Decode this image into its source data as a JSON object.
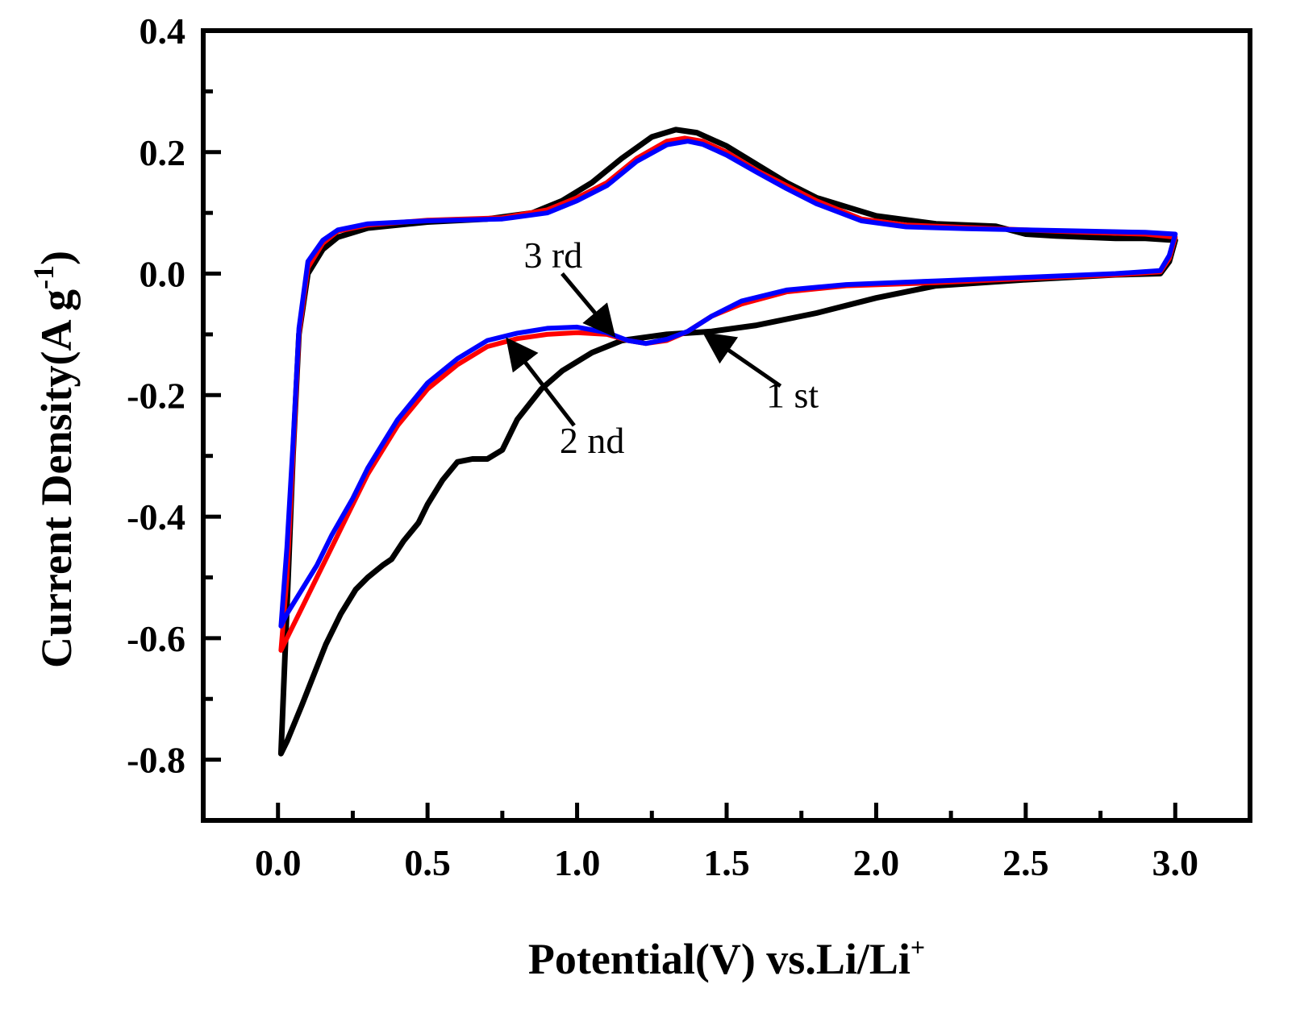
{
  "chart_data": {
    "type": "line",
    "title": "",
    "xlabel_main": "Potential(V) vs.Li/Li",
    "xlabel_sup": "+",
    "ylabel_main": "Current Density(A g",
    "ylabel_sup": "-1",
    "ylabel_close": ")",
    "xlim": [
      -0.25,
      3.25
    ],
    "ylim": [
      -0.9,
      0.4
    ],
    "xticks": [
      0.0,
      0.5,
      1.0,
      1.5,
      2.0,
      2.5,
      3.0
    ],
    "xtick_labels": [
      "0.0",
      "0.5",
      "1.0",
      "1.5",
      "2.0",
      "2.5",
      "3.0"
    ],
    "yticks": [
      -0.8,
      -0.6,
      -0.4,
      -0.2,
      0.0,
      0.2,
      0.4
    ],
    "ytick_labels": [
      "-0.8",
      "-0.6",
      "-0.4",
      "-0.2",
      "0.0",
      "0.2",
      "0.4"
    ],
    "grid": false,
    "series": [
      {
        "name": "1 st",
        "color": "#000000",
        "points": [
          [
            0.01,
            -0.79
          ],
          [
            0.03,
            -0.77
          ],
          [
            0.08,
            -0.71
          ],
          [
            0.12,
            -0.66
          ],
          [
            0.16,
            -0.61
          ],
          [
            0.21,
            -0.56
          ],
          [
            0.26,
            -0.52
          ],
          [
            0.3,
            -0.5
          ],
          [
            0.35,
            -0.48
          ],
          [
            0.38,
            -0.47
          ],
          [
            0.42,
            -0.44
          ],
          [
            0.47,
            -0.41
          ],
          [
            0.5,
            -0.38
          ],
          [
            0.55,
            -0.34
          ],
          [
            0.6,
            -0.31
          ],
          [
            0.65,
            -0.305
          ],
          [
            0.7,
            -0.305
          ],
          [
            0.75,
            -0.29
          ],
          [
            0.8,
            -0.24
          ],
          [
            0.88,
            -0.19
          ],
          [
            0.95,
            -0.16
          ],
          [
            1.05,
            -0.13
          ],
          [
            1.15,
            -0.11
          ],
          [
            1.3,
            -0.1
          ],
          [
            1.45,
            -0.095
          ],
          [
            1.6,
            -0.085
          ],
          [
            1.8,
            -0.065
          ],
          [
            2.0,
            -0.04
          ],
          [
            2.2,
            -0.02
          ],
          [
            2.5,
            -0.01
          ],
          [
            2.8,
            -0.002
          ],
          [
            2.95,
            0.0
          ],
          [
            2.98,
            0.02
          ],
          [
            3.0,
            0.055
          ],
          [
            2.9,
            0.058
          ],
          [
            2.8,
            0.058
          ],
          [
            2.6,
            0.062
          ],
          [
            2.5,
            0.065
          ],
          [
            2.4,
            0.078
          ],
          [
            2.2,
            0.082
          ],
          [
            2.0,
            0.095
          ],
          [
            1.8,
            0.125
          ],
          [
            1.7,
            0.15
          ],
          [
            1.6,
            0.18
          ],
          [
            1.5,
            0.21
          ],
          [
            1.4,
            0.232
          ],
          [
            1.33,
            0.237
          ],
          [
            1.25,
            0.225
          ],
          [
            1.15,
            0.19
          ],
          [
            1.05,
            0.15
          ],
          [
            0.95,
            0.12
          ],
          [
            0.85,
            0.1
          ],
          [
            0.7,
            0.09
          ],
          [
            0.5,
            0.085
          ],
          [
            0.3,
            0.075
          ],
          [
            0.2,
            0.06
          ],
          [
            0.15,
            0.04
          ],
          [
            0.1,
            0.0
          ],
          [
            0.07,
            -0.1
          ],
          [
            0.05,
            -0.3
          ],
          [
            0.03,
            -0.55
          ],
          [
            0.01,
            -0.79
          ]
        ]
      },
      {
        "name": "2 nd",
        "color": "#ff0000",
        "points": [
          [
            0.01,
            -0.62
          ],
          [
            0.03,
            -0.6
          ],
          [
            0.08,
            -0.55
          ],
          [
            0.13,
            -0.5
          ],
          [
            0.18,
            -0.45
          ],
          [
            0.25,
            -0.38
          ],
          [
            0.3,
            -0.33
          ],
          [
            0.35,
            -0.29
          ],
          [
            0.4,
            -0.25
          ],
          [
            0.5,
            -0.19
          ],
          [
            0.6,
            -0.15
          ],
          [
            0.7,
            -0.12
          ],
          [
            0.8,
            -0.107
          ],
          [
            0.9,
            -0.1
          ],
          [
            1.0,
            -0.097
          ],
          [
            1.1,
            -0.1
          ],
          [
            1.17,
            -0.11
          ],
          [
            1.23,
            -0.115
          ],
          [
            1.3,
            -0.11
          ],
          [
            1.37,
            -0.095
          ],
          [
            1.45,
            -0.07
          ],
          [
            1.55,
            -0.05
          ],
          [
            1.7,
            -0.03
          ],
          [
            1.9,
            -0.02
          ],
          [
            2.2,
            -0.015
          ],
          [
            2.5,
            -0.008
          ],
          [
            2.8,
            -0.002
          ],
          [
            2.95,
            0.003
          ],
          [
            2.98,
            0.025
          ],
          [
            3.0,
            0.06
          ],
          [
            2.9,
            0.065
          ],
          [
            2.7,
            0.068
          ],
          [
            2.5,
            0.072
          ],
          [
            2.3,
            0.076
          ],
          [
            2.1,
            0.08
          ],
          [
            1.95,
            0.09
          ],
          [
            1.8,
            0.12
          ],
          [
            1.7,
            0.145
          ],
          [
            1.6,
            0.17
          ],
          [
            1.5,
            0.2
          ],
          [
            1.42,
            0.218
          ],
          [
            1.36,
            0.223
          ],
          [
            1.3,
            0.218
          ],
          [
            1.2,
            0.19
          ],
          [
            1.1,
            0.15
          ],
          [
            1.0,
            0.125
          ],
          [
            0.9,
            0.105
          ],
          [
            0.75,
            0.092
          ],
          [
            0.5,
            0.088
          ],
          [
            0.3,
            0.08
          ],
          [
            0.2,
            0.07
          ],
          [
            0.15,
            0.05
          ],
          [
            0.1,
            0.01
          ],
          [
            0.07,
            -0.1
          ],
          [
            0.05,
            -0.3
          ],
          [
            0.03,
            -0.5
          ],
          [
            0.01,
            -0.62
          ]
        ]
      },
      {
        "name": "3 rd",
        "color": "#0000ff",
        "points": [
          [
            0.01,
            -0.58
          ],
          [
            0.03,
            -0.56
          ],
          [
            0.08,
            -0.52
          ],
          [
            0.13,
            -0.48
          ],
          [
            0.18,
            -0.43
          ],
          [
            0.25,
            -0.37
          ],
          [
            0.3,
            -0.32
          ],
          [
            0.35,
            -0.28
          ],
          [
            0.4,
            -0.24
          ],
          [
            0.5,
            -0.18
          ],
          [
            0.6,
            -0.14
          ],
          [
            0.7,
            -0.11
          ],
          [
            0.8,
            -0.098
          ],
          [
            0.9,
            -0.09
          ],
          [
            1.0,
            -0.088
          ],
          [
            1.1,
            -0.097
          ],
          [
            1.17,
            -0.11
          ],
          [
            1.23,
            -0.115
          ],
          [
            1.3,
            -0.108
          ],
          [
            1.37,
            -0.095
          ],
          [
            1.45,
            -0.07
          ],
          [
            1.55,
            -0.045
          ],
          [
            1.7,
            -0.027
          ],
          [
            1.9,
            -0.018
          ],
          [
            2.2,
            -0.012
          ],
          [
            2.5,
            -0.006
          ],
          [
            2.8,
            0.0
          ],
          [
            2.95,
            0.005
          ],
          [
            2.98,
            0.03
          ],
          [
            3.0,
            0.065
          ],
          [
            2.9,
            0.068
          ],
          [
            2.7,
            0.07
          ],
          [
            2.5,
            0.072
          ],
          [
            2.3,
            0.074
          ],
          [
            2.1,
            0.077
          ],
          [
            1.95,
            0.087
          ],
          [
            1.8,
            0.115
          ],
          [
            1.7,
            0.14
          ],
          [
            1.6,
            0.167
          ],
          [
            1.5,
            0.195
          ],
          [
            1.42,
            0.213
          ],
          [
            1.37,
            0.218
          ],
          [
            1.3,
            0.212
          ],
          [
            1.2,
            0.185
          ],
          [
            1.1,
            0.145
          ],
          [
            1.0,
            0.12
          ],
          [
            0.9,
            0.1
          ],
          [
            0.75,
            0.09
          ],
          [
            0.5,
            0.087
          ],
          [
            0.3,
            0.082
          ],
          [
            0.2,
            0.072
          ],
          [
            0.15,
            0.055
          ],
          [
            0.1,
            0.02
          ],
          [
            0.07,
            -0.09
          ],
          [
            0.05,
            -0.28
          ],
          [
            0.03,
            -0.45
          ],
          [
            0.01,
            -0.58
          ]
        ]
      }
    ],
    "annotations": [
      {
        "text": "3 rd",
        "label_at": [
          0.92,
          0.01
        ],
        "arrow_from": [
          0.95,
          0.0
        ],
        "arrow_to": [
          1.12,
          -0.1
        ]
      },
      {
        "text": "2 nd",
        "label_at": [
          1.05,
          -0.295
        ],
        "arrow_from": [
          0.99,
          -0.25
        ],
        "arrow_to": [
          0.77,
          -0.11
        ]
      },
      {
        "text": "1 st",
        "label_at": [
          1.72,
          -0.22
        ],
        "arrow_from": [
          1.68,
          -0.185
        ],
        "arrow_to": [
          1.43,
          -0.1
        ]
      }
    ]
  }
}
